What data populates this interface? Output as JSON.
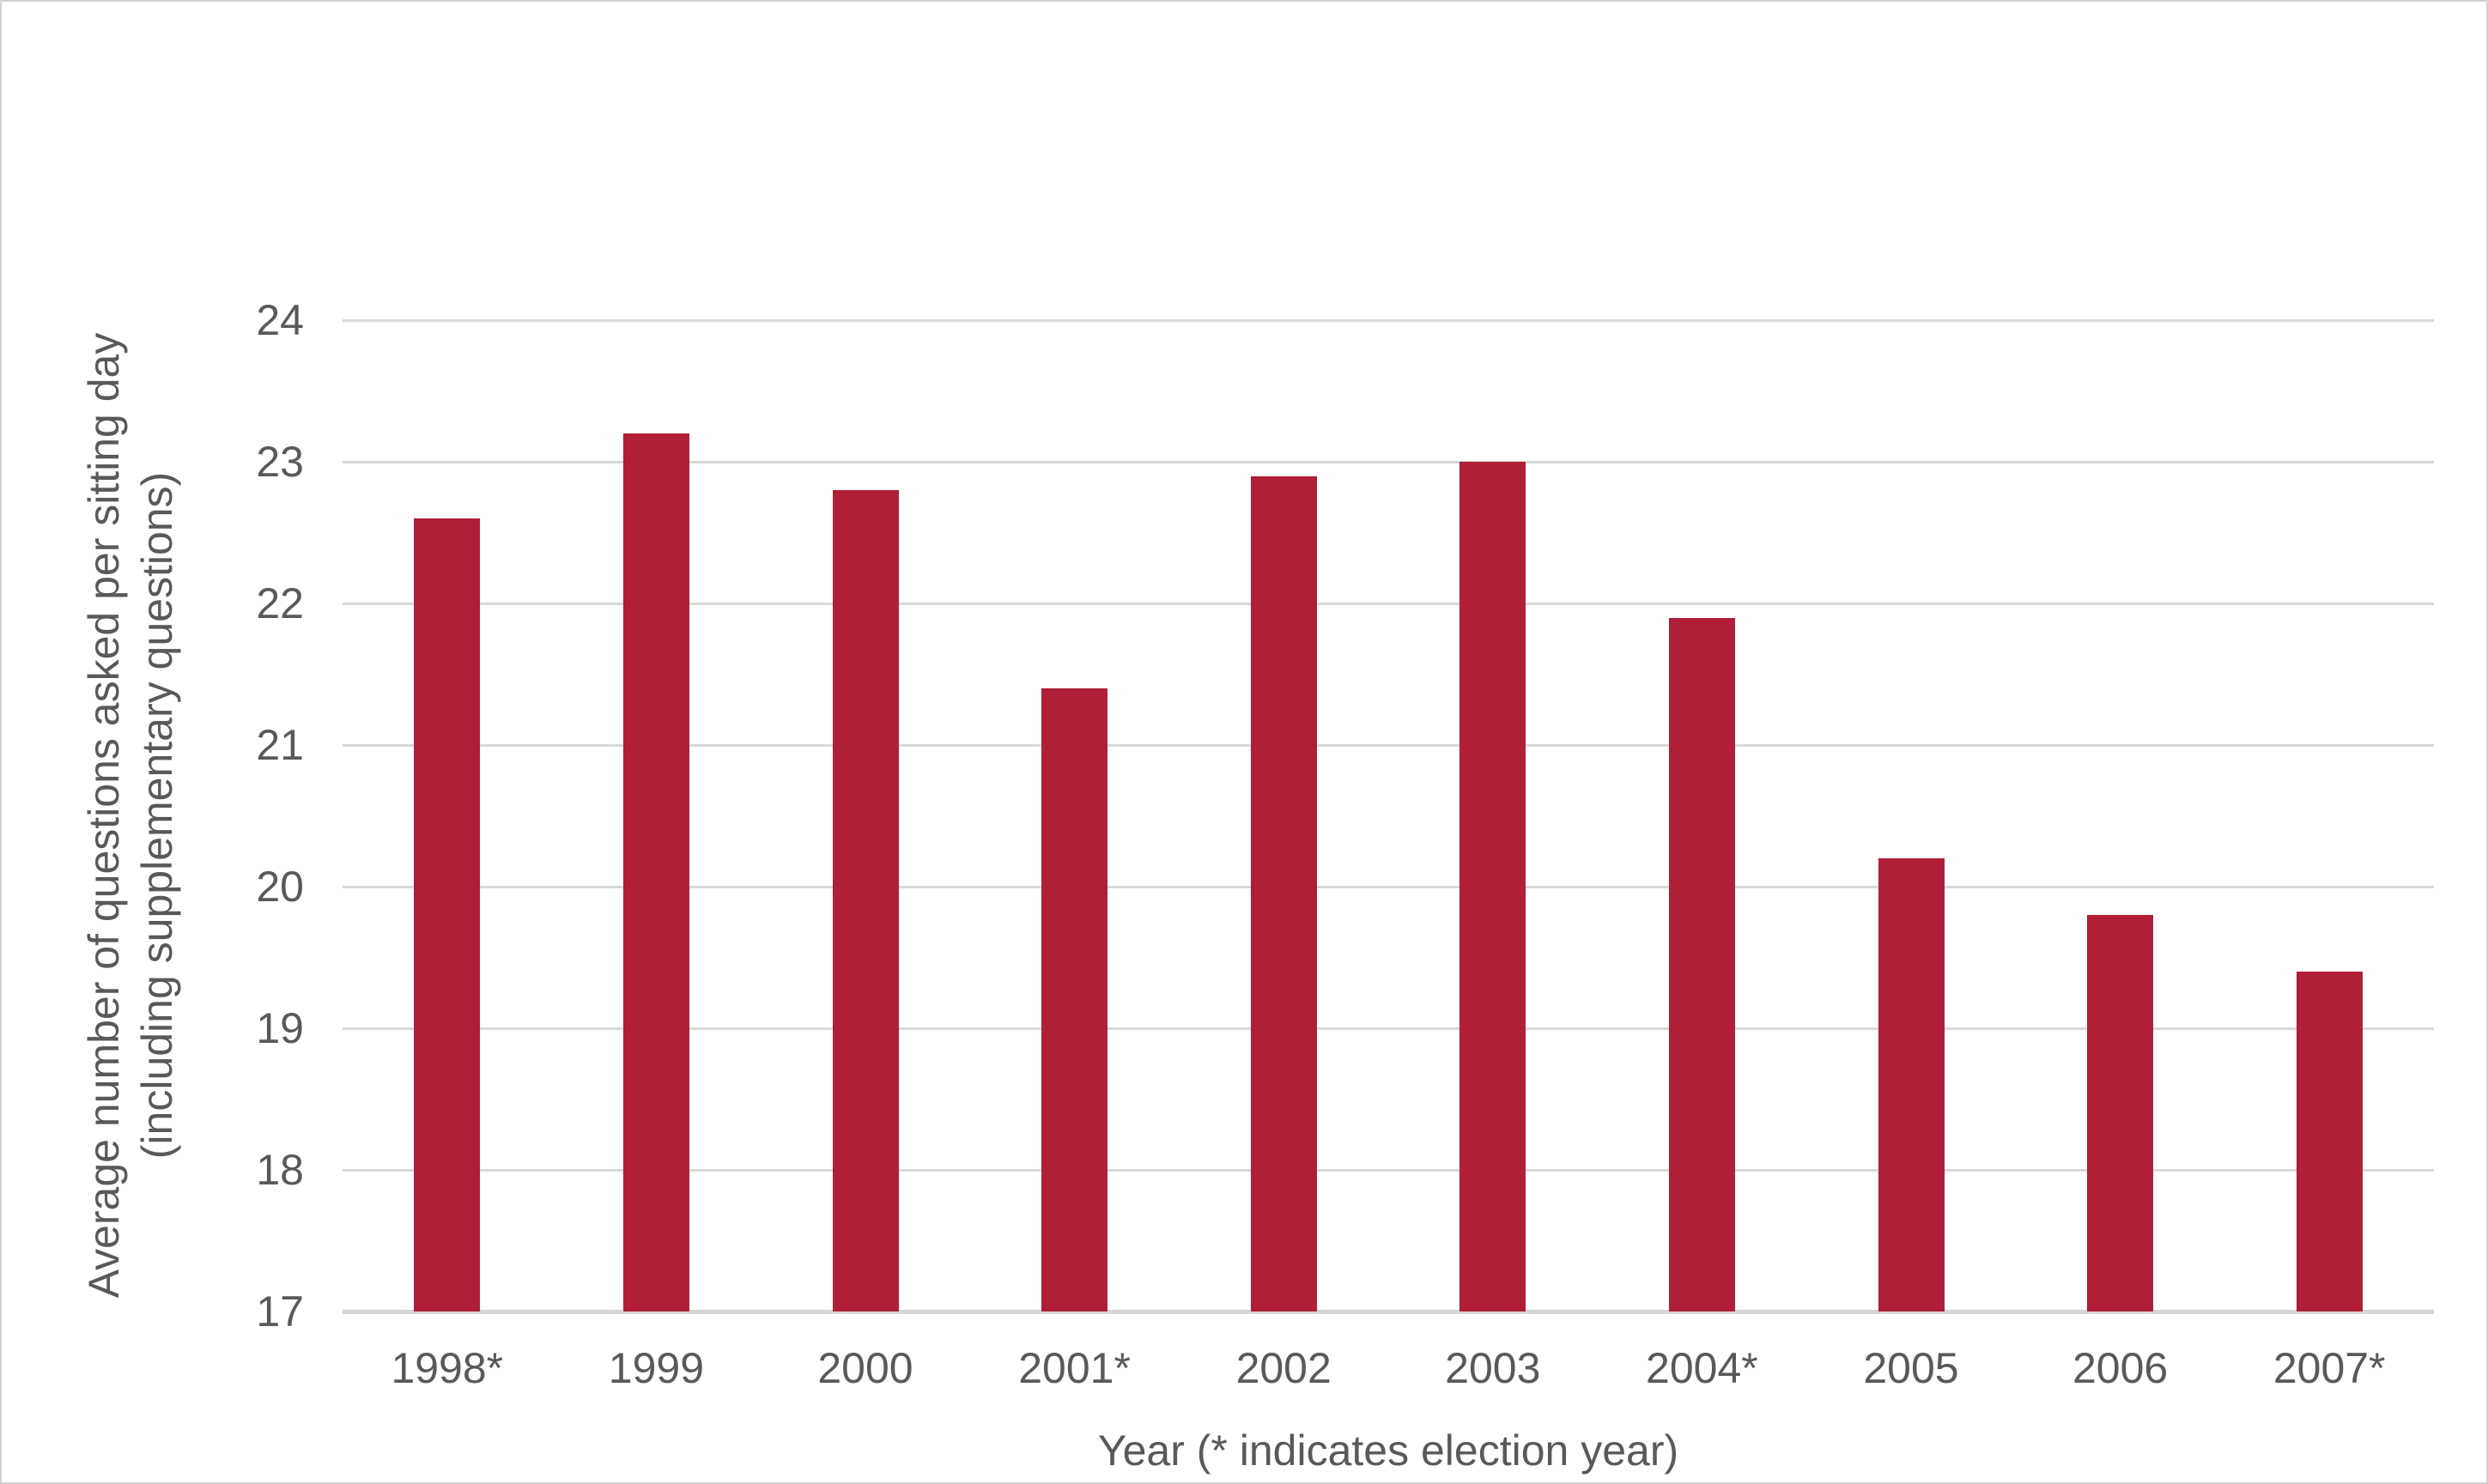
{
  "chart_data": {
    "type": "bar",
    "title": "",
    "categories": [
      "1998*",
      "1999",
      "2000",
      "2001*",
      "2002",
      "2003",
      "2004*",
      "2005",
      "2006",
      "2007*"
    ],
    "values": [
      22.6,
      23.2,
      22.8,
      21.4,
      22.9,
      23.0,
      21.9,
      20.2,
      19.8,
      19.4
    ],
    "xlabel": "Year (* indicates election year)",
    "ylabel_line1": "Average number of questions asked per sitting day",
    "ylabel_line2": "(including supplementary questions)",
    "ylim": [
      17,
      24
    ],
    "yticks": [
      17,
      18,
      19,
      20,
      21,
      22,
      23,
      24
    ],
    "grid": "horizontal gridlines on",
    "legend": "none",
    "bar_color": "#B01E37",
    "grid_color": "#D9D9D9",
    "text_color": "#595959"
  }
}
